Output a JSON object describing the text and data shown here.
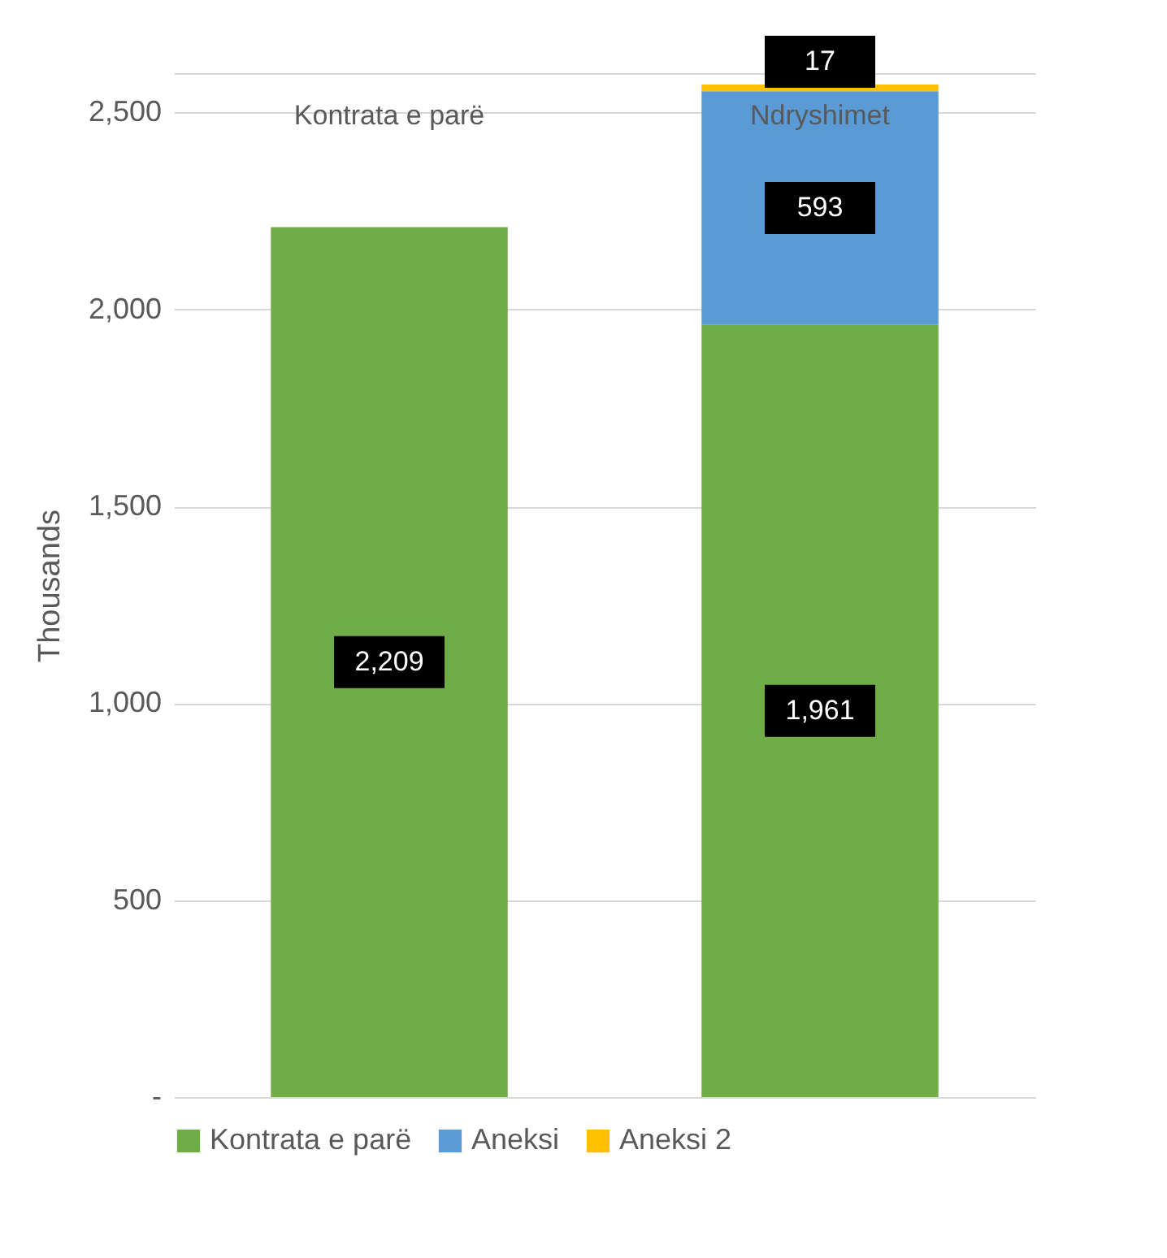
{
  "chart_data": {
    "type": "bar",
    "stacked": true,
    "ylabel": "Thousands",
    "categories": [
      "Kontrata e parë",
      "Ndryshimet"
    ],
    "series": [
      {
        "name": "Kontrata e parë",
        "color": "#70ad47",
        "values": [
          2209,
          1961
        ],
        "value_labels": [
          "2,209",
          "1,961"
        ]
      },
      {
        "name": "Aneksi",
        "color": "#5b9bd5",
        "values": [
          null,
          593
        ],
        "value_labels": [
          null,
          "593"
        ]
      },
      {
        "name": "Aneksi 2",
        "color": "#ffc000",
        "values": [
          null,
          17
        ],
        "value_labels": [
          null,
          "17"
        ]
      }
    ],
    "ylim": [
      0,
      2600
    ],
    "yticks": [
      {
        "value": 0,
        "label": "-"
      },
      500,
      {
        "value": 1000,
        "label": "1,000"
      },
      {
        "value": 1500,
        "label": "1,500"
      },
      {
        "value": 2000,
        "label": "2,000"
      },
      {
        "value": 2500,
        "label": "2,500"
      },
      {
        "value": 2600,
        "label": null
      }
    ],
    "grid": "y",
    "legend": "bottom"
  }
}
